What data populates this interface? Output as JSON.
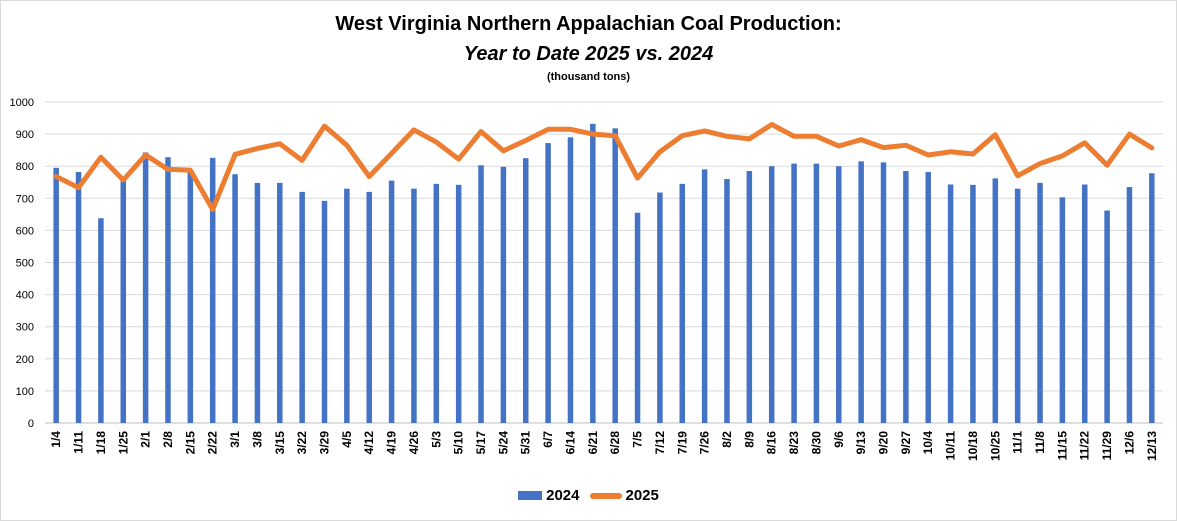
{
  "chart_data": {
    "type": "bar",
    "title": "West Virginia Northern Appalachian Coal Production:",
    "subtitle": "Year to Date 2025 vs. 2024",
    "units": "(thousand tons)",
    "ylim": [
      0,
      1000
    ],
    "yticks": [
      0,
      100,
      200,
      300,
      400,
      500,
      600,
      700,
      800,
      900,
      1000
    ],
    "grid": true,
    "legend_position": "bottom",
    "categories": [
      "1/4",
      "1/11",
      "1/18",
      "1/25",
      "2/1",
      "2/8",
      "2/15",
      "2/22",
      "3/1",
      "3/8",
      "3/15",
      "3/22",
      "3/29",
      "4/5",
      "4/12",
      "4/19",
      "4/26",
      "5/3",
      "5/10",
      "5/17",
      "5/24",
      "5/31",
      "6/7",
      "6/14",
      "6/21",
      "6/28",
      "7/5",
      "7/12",
      "7/19",
      "7/26",
      "8/2",
      "8/9",
      "8/16",
      "8/23",
      "8/30",
      "9/6",
      "9/13",
      "9/20",
      "9/27",
      "10/4",
      "10/11",
      "10/18",
      "10/25",
      "11/1",
      "11/8",
      "11/15",
      "11/22",
      "11/29",
      "12/6",
      "12/13"
    ],
    "series": [
      {
        "name": "2024",
        "type": "bar",
        "color": "#4472C4",
        "values": [
          795,
          782,
          638,
          760,
          843,
          828,
          788,
          826,
          775,
          748,
          748,
          720,
          692,
          730,
          720,
          755,
          730,
          745,
          742,
          803,
          798,
          825,
          872,
          890,
          932,
          918,
          655,
          718,
          745,
          790,
          760,
          785,
          800,
          808,
          808,
          800,
          815,
          812,
          785,
          782,
          743,
          742,
          762,
          730,
          748,
          703,
          743,
          662,
          735,
          778
        ]
      },
      {
        "name": "2025",
        "type": "line",
        "color": "#ED7D31",
        "values": [
          768,
          733,
          828,
          757,
          835,
          790,
          788,
          665,
          837,
          855,
          870,
          818,
          925,
          865,
          768,
          840,
          913,
          875,
          822,
          908,
          848,
          880,
          915,
          915,
          900,
          895,
          763,
          845,
          895,
          910,
          893,
          885,
          930,
          893,
          893,
          863,
          883,
          858,
          865,
          835,
          845,
          838,
          898,
          770,
          808,
          832,
          873,
          803,
          900,
          857
        ]
      }
    ]
  }
}
